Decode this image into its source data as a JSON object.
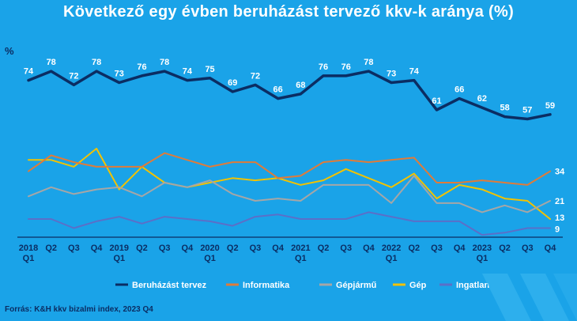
{
  "title": "Következő egy évben beruházást tervező kkv-k aránya (%)",
  "unit": "%",
  "source": "Forrás: K&H kkv bizalmi index, 2023 Q4",
  "chart_data": {
    "type": "line",
    "title": "Következő egy évben beruházást tervező kkv-k aránya (%)",
    "ylabel": "%",
    "ylim": [
      5,
      85
    ],
    "categories": [
      [
        "2018",
        "Q1"
      ],
      [
        "Q2"
      ],
      [
        "Q3"
      ],
      [
        "Q4"
      ],
      [
        "2019",
        "Q1"
      ],
      [
        "Q2"
      ],
      [
        "Q3"
      ],
      [
        "Q4"
      ],
      [
        "2020",
        "Q1"
      ],
      [
        "Q2"
      ],
      [
        "Q3"
      ],
      [
        "Q4"
      ],
      [
        "2021",
        "Q1"
      ],
      [
        "Q2"
      ],
      [
        "Q3"
      ],
      [
        "Q4"
      ],
      [
        "2022",
        "Q1"
      ],
      [
        "Q2"
      ],
      [
        "Q3"
      ],
      [
        "Q4"
      ],
      [
        "2023",
        "Q1"
      ],
      [
        "Q2"
      ],
      [
        "Q3"
      ],
      [
        "Q4"
      ]
    ],
    "series": [
      {
        "name": "Beruházást tervez",
        "color": "#0b2d63",
        "labeled": true,
        "values": [
          74,
          78,
          72,
          78,
          73,
          76,
          78,
          74,
          75,
          69,
          72,
          66,
          68,
          76,
          76,
          78,
          73,
          74,
          61,
          66,
          62,
          58,
          57,
          59
        ]
      },
      {
        "name": "Informatika",
        "color": "#e07b39",
        "end_label": "34",
        "values": [
          34,
          41,
          38,
          36,
          36,
          36,
          42,
          39,
          36,
          38,
          38,
          31,
          32,
          38,
          39,
          38,
          39,
          40,
          29,
          29,
          30,
          29,
          28,
          34
        ]
      },
      {
        "name": "Gépjármű",
        "color": "#a6a6a6",
        "end_label": "21",
        "values": [
          23,
          27,
          24,
          26,
          27,
          23,
          29,
          27,
          30,
          24,
          21,
          22,
          21,
          28,
          28,
          28,
          20,
          32,
          20,
          20,
          16,
          19,
          16,
          21
        ]
      },
      {
        "name": "Gép",
        "color": "#f2c200",
        "end_label": "13",
        "values": [
          39,
          39,
          36,
          44,
          26,
          36,
          29,
          27,
          29,
          31,
          30,
          31,
          28,
          30,
          35,
          31,
          27,
          33,
          22,
          28,
          26,
          22,
          21,
          13
        ]
      },
      {
        "name": "Ingatlan",
        "color": "#5b6fc8",
        "end_label": "9",
        "values": [
          13,
          13,
          9,
          12,
          14,
          11,
          14,
          13,
          12,
          10,
          14,
          15,
          13,
          13,
          13,
          16,
          14,
          12,
          12,
          12,
          6,
          7,
          9,
          9
        ]
      }
    ]
  }
}
